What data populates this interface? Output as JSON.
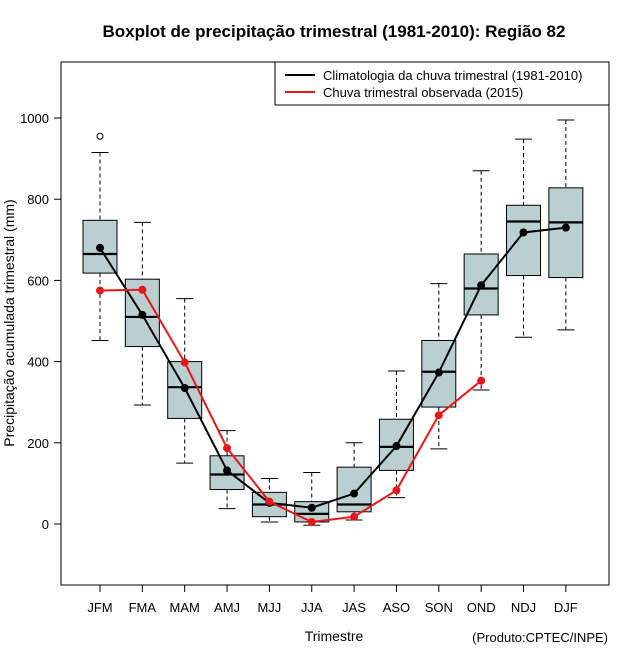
{
  "chart_data": {
    "type": "box",
    "title": "Boxplot de precipitação trimestral (1981-2010): Região 82",
    "xlabel": "Trimestre",
    "ylabel": "Precipitação acumulada trimestral (mm)",
    "ylim": [
      -150,
      1150
    ],
    "yticks": [
      0,
      200,
      400,
      600,
      800,
      1000
    ],
    "categories": [
      "JFM",
      "FMA",
      "MAM",
      "AMJ",
      "MJJ",
      "JJA",
      "JAS",
      "ASO",
      "SON",
      "OND",
      "NDJ",
      "DJF"
    ],
    "boxes": [
      {
        "whisker_low": 452,
        "q1": 618,
        "median": 665,
        "q3": 748,
        "whisker_high": 915,
        "outliers": [
          955
        ]
      },
      {
        "whisker_low": 293,
        "q1": 437,
        "median": 510,
        "q3": 603,
        "whisker_high": 743,
        "outliers": []
      },
      {
        "whisker_low": 150,
        "q1": 260,
        "median": 337,
        "q3": 400,
        "whisker_high": 555,
        "outliers": []
      },
      {
        "whisker_low": 38,
        "q1": 85,
        "median": 122,
        "q3": 168,
        "whisker_high": 230,
        "outliers": []
      },
      {
        "whisker_low": 5,
        "q1": 18,
        "median": 48,
        "q3": 78,
        "whisker_high": 112,
        "outliers": []
      },
      {
        "whisker_low": -3,
        "q1": 5,
        "median": 25,
        "q3": 55,
        "whisker_high": 127,
        "outliers": []
      },
      {
        "whisker_low": 10,
        "q1": 30,
        "median": 48,
        "q3": 140,
        "whisker_high": 200,
        "outliers": []
      },
      {
        "whisker_low": 65,
        "q1": 132,
        "median": 190,
        "q3": 258,
        "whisker_high": 377,
        "outliers": []
      },
      {
        "whisker_low": 185,
        "q1": 288,
        "median": 375,
        "q3": 452,
        "whisker_high": 592,
        "outliers": []
      },
      {
        "whisker_low": 330,
        "q1": 515,
        "median": 580,
        "q3": 665,
        "whisker_high": 870,
        "outliers": []
      },
      {
        "whisker_low": 460,
        "q1": 612,
        "median": 745,
        "q3": 785,
        "whisker_high": 948,
        "outliers": []
      },
      {
        "whisker_low": 478,
        "q1": 607,
        "median": 743,
        "q3": 828,
        "whisker_high": 995,
        "outliers": []
      }
    ],
    "series": [
      {
        "name": "Climatologia da chuva trimestral (1981-2010)",
        "color": "#000000",
        "values": [
          680,
          515,
          335,
          132,
          52,
          40,
          75,
          192,
          373,
          588,
          718,
          730
        ]
      },
      {
        "name": "Chuva trimestral observada (2015)",
        "color": "#e8161a",
        "values": [
          575,
          577,
          398,
          187,
          55,
          5,
          18,
          83,
          268,
          353,
          null,
          null
        ]
      }
    ],
    "box_color": "#b9cfd0",
    "legend_position": "top-right",
    "credit": "(Produto:CPTEC/INPE)"
  }
}
